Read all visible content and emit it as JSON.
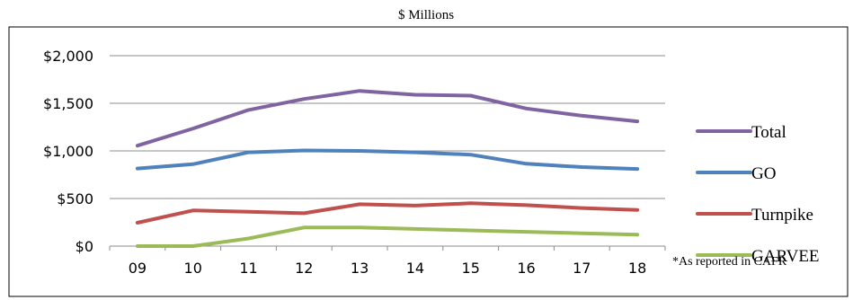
{
  "chart_data": {
    "type": "line",
    "title": "$ Millions",
    "categories": [
      "09",
      "10",
      "11",
      "12",
      "13",
      "14",
      "15",
      "16",
      "17",
      "18"
    ],
    "ylim": [
      0,
      2000
    ],
    "yticks": [
      "$0",
      "$500",
      "$1,000",
      "$1,500",
      "$2,000"
    ],
    "ytick_values": [
      0,
      500,
      1000,
      1500,
      2000
    ],
    "grid": true,
    "legend_position": "right",
    "series": [
      {
        "name": "Total",
        "color": "#8064A2",
        "values": [
          1055,
          1235,
          1430,
          1545,
          1630,
          1590,
          1580,
          1445,
          1370,
          1310
        ]
      },
      {
        "name": "GO",
        "color": "#4F81BD",
        "values": [
          815,
          860,
          985,
          1005,
          1000,
          985,
          960,
          865,
          830,
          810
        ]
      },
      {
        "name": "Turnpike",
        "color": "#C0504D",
        "values": [
          245,
          375,
          360,
          345,
          440,
          425,
          450,
          430,
          400,
          380
        ]
      },
      {
        "name": "GARVEE",
        "color": "#9BBB59",
        "values": [
          0,
          0,
          80,
          195,
          195,
          180,
          165,
          150,
          135,
          120
        ]
      }
    ],
    "footnote": "*As reported in CAFR"
  }
}
